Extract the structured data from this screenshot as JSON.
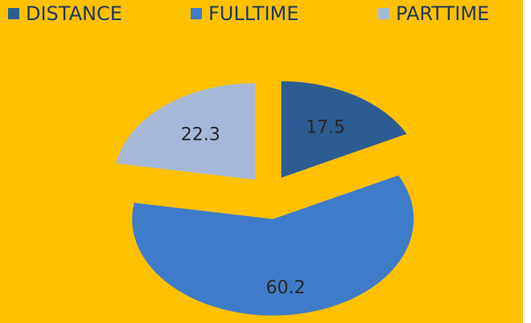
{
  "chart_data": {
    "type": "pie",
    "categories": [
      "DISTANCE",
      "FULLTIME",
      "PARTTIME"
    ],
    "values": [
      17.5,
      60.2,
      22.3
    ],
    "colors": [
      "#2c5d92",
      "#3e7cc9",
      "#a5b8d8"
    ],
    "exploded": true
  }
}
